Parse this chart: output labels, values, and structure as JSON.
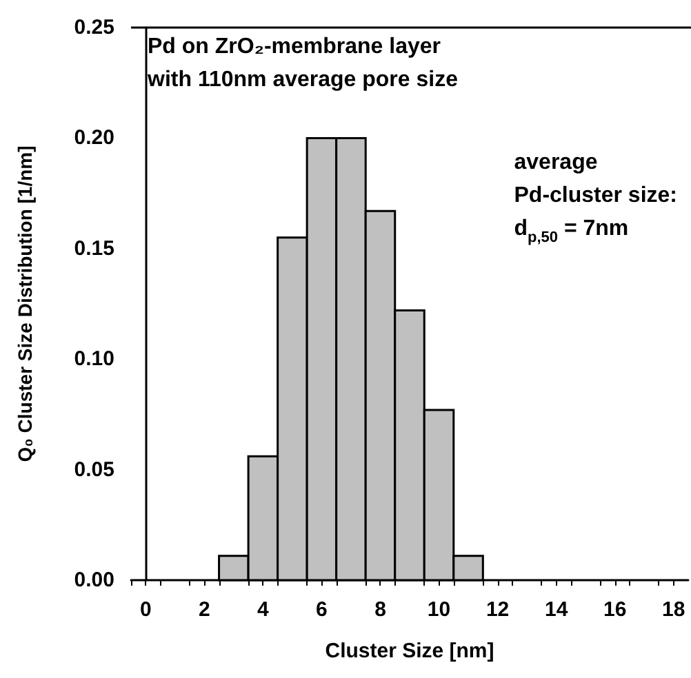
{
  "chart_data": {
    "type": "histogram",
    "xlabel": "Cluster Size [nm]",
    "ylabel": "Q₀ Cluster Size Distribution [1/nm]",
    "annotations": [
      "Pd on ZrO₂-membrane layer\nwith 110nm average pore size",
      "average\nPd-cluster size:\nd$_{p,50}$ = 7nm"
    ],
    "bins": [
      2.5,
      3.5,
      4.5,
      5.5,
      6.5,
      7.5,
      8.5,
      9.5,
      10.5,
      11.5
    ],
    "values": [
      0.011,
      0.056,
      0.155,
      0.2,
      0.2,
      0.167,
      0.122,
      0.077,
      0.011
    ],
    "color": "#c0c0c0",
    "xlim": [
      -0.5,
      18.5
    ],
    "xticks": [
      {
        "value": 0,
        "label": "0"
      },
      {
        "value": 2,
        "label": "2"
      },
      {
        "value": 4,
        "label": "4"
      },
      {
        "value": 6,
        "label": "6"
      },
      {
        "value": 8,
        "label": "8"
      },
      {
        "value": 10,
        "label": "10"
      },
      {
        "value": 12,
        "label": "12"
      },
      {
        "value": 14,
        "label": "14"
      },
      {
        "value": 16,
        "label": "16"
      },
      {
        "value": 18,
        "label": "18"
      },
      {
        "value": -0.5,
        "label": null
      },
      {
        "value": 0.5,
        "label": null
      },
      {
        "value": 1.5,
        "label": null
      },
      {
        "value": 2.5,
        "label": null
      },
      {
        "value": 3.5,
        "label": null
      },
      {
        "value": 4.5,
        "label": null
      },
      {
        "value": 5.5,
        "label": null
      },
      {
        "value": 6.5,
        "label": null
      },
      {
        "value": 7.5,
        "label": null
      },
      {
        "value": 8.5,
        "label": null
      },
      {
        "value": 9.5,
        "label": null
      },
      {
        "value": 10.5,
        "label": null
      },
      {
        "value": 11.5,
        "label": null
      },
      {
        "value": 12.5,
        "label": null
      },
      {
        "value": 13.5,
        "label": null
      },
      {
        "value": 14.5,
        "label": null
      },
      {
        "value": 15.5,
        "label": null
      },
      {
        "value": 16.5,
        "label": null
      },
      {
        "value": 17.5,
        "label": null
      }
    ],
    "ylim": [
      0,
      0.25
    ],
    "yticks": [
      {
        "value": 0,
        "label": "0.00"
      },
      {
        "value": 0.05,
        "label": "0.05"
      },
      {
        "value": 0.1,
        "label": "0.10"
      },
      {
        "value": 0.15,
        "label": "0.15"
      },
      {
        "value": 0.2,
        "label": "0.20"
      },
      {
        "value": 0.25,
        "label": "0.25"
      }
    ],
    "grid": false
  }
}
